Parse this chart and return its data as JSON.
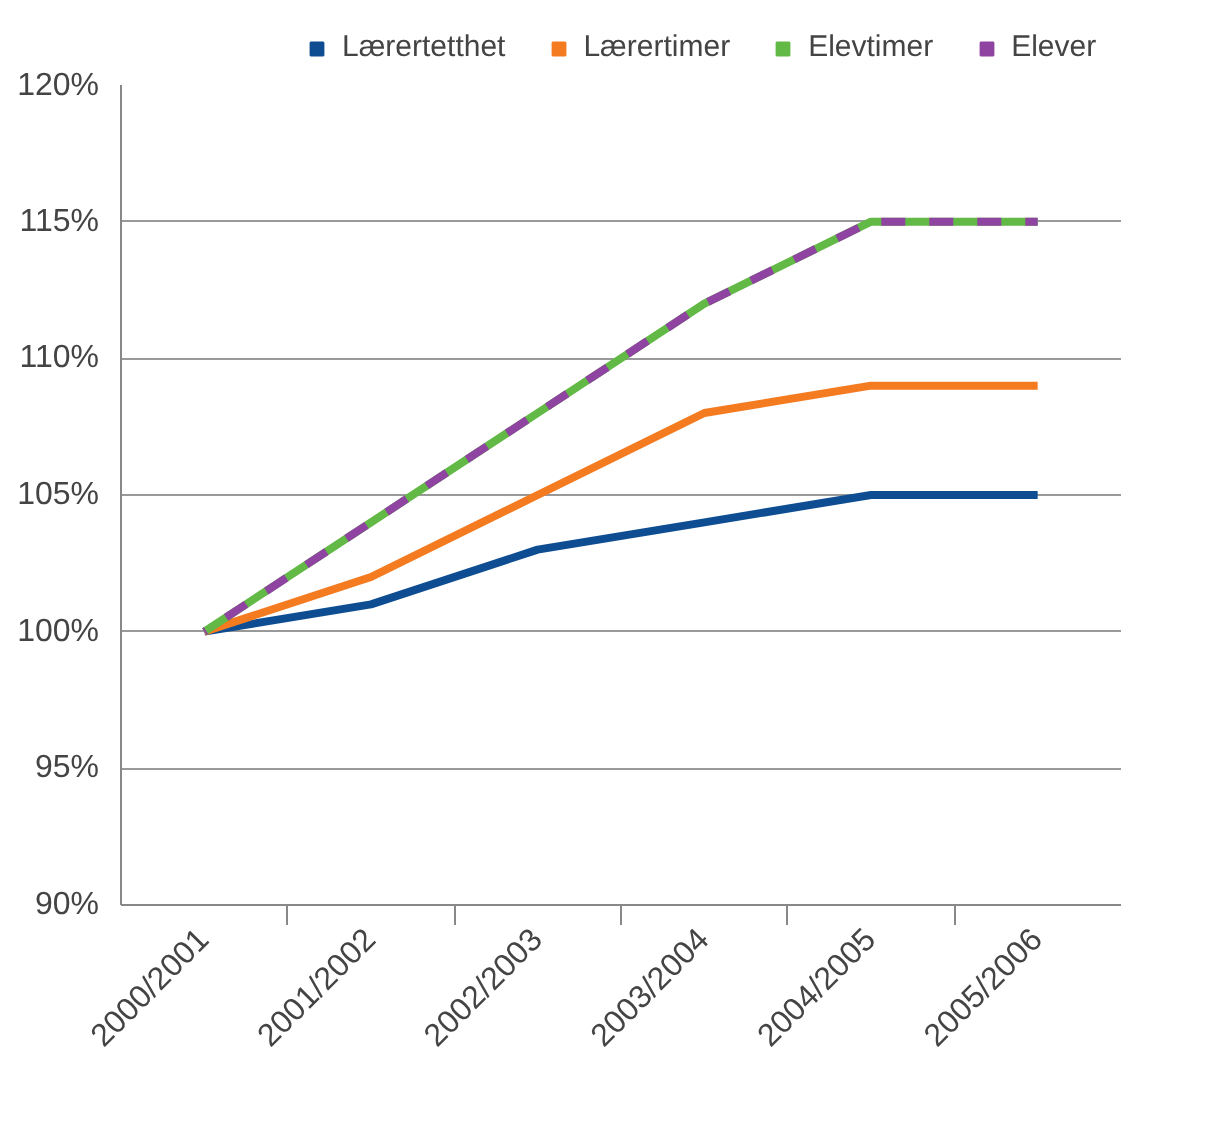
{
  "chart_data": {
    "type": "line",
    "categories": [
      "2000/2001",
      "2001/2002",
      "2002/2003",
      "2003/2004",
      "2004/2005",
      "2005/2006"
    ],
    "series": [
      {
        "name": "Lærertetthet",
        "color": "#0e4d92",
        "values": [
          100,
          101,
          103,
          104,
          105,
          105
        ]
      },
      {
        "name": "Lærertimer",
        "color": "#f47b20",
        "values": [
          100,
          102,
          105,
          108,
          109,
          109
        ]
      },
      {
        "name": "Elevtimer",
        "color": "#62b946",
        "values": [
          100,
          104,
          108,
          112,
          115,
          115
        ]
      },
      {
        "name": "Elever",
        "color": "#8e44a0",
        "values": [
          100,
          104,
          108,
          112,
          115,
          115
        ],
        "line_style": "dashed"
      }
    ],
    "ylim": [
      90,
      120
    ],
    "yticks": [
      {
        "value": 90,
        "label": "90%"
      },
      {
        "value": 95,
        "label": "95%"
      },
      {
        "value": 100,
        "label": "100%"
      },
      {
        "value": 105,
        "label": "105%"
      },
      {
        "value": 110,
        "label": "110%"
      },
      {
        "value": 115,
        "label": "115%"
      },
      {
        "value": 120,
        "label": "120%"
      }
    ],
    "grid": "y",
    "legend": "top",
    "marker": "none"
  }
}
